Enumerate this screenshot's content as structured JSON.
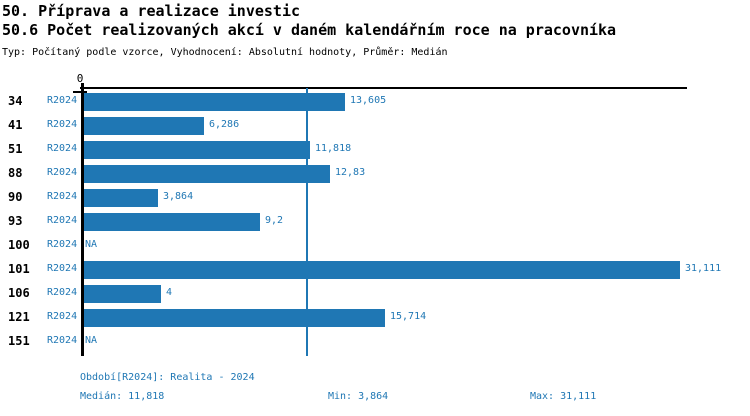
{
  "chart_data": {
    "type": "bar",
    "orientation": "horizontal",
    "title": "50. Příprava a realizace investic",
    "subtitle": "50.6 Počet realizovaných akcí v daném kalendářním roce na pracovníka",
    "meta_line": "Typ: Počítaný podle vzorce, Vyhodnocení: Absolutní hodnoty, Průměr: Medián",
    "axis": {
      "zero_label": "0",
      "xlim": [
        0,
        32
      ],
      "grid": false
    },
    "series_name": "R2024",
    "median_value": 11.818,
    "categories": [
      "34",
      "41",
      "51",
      "88",
      "90",
      "93",
      "100",
      "101",
      "106",
      "121",
      "151"
    ],
    "rows": [
      {
        "id": "34",
        "series": "R2024",
        "value": 13.605,
        "label": "13,605"
      },
      {
        "id": "41",
        "series": "R2024",
        "value": 6.286,
        "label": "6,286"
      },
      {
        "id": "51",
        "series": "R2024",
        "value": 11.818,
        "label": "11,818"
      },
      {
        "id": "88",
        "series": "R2024",
        "value": 12.83,
        "label": "12,83"
      },
      {
        "id": "90",
        "series": "R2024",
        "value": 3.864,
        "label": "3,864"
      },
      {
        "id": "93",
        "series": "R2024",
        "value": 9.2,
        "label": "9,2"
      },
      {
        "id": "100",
        "series": "R2024",
        "value": null,
        "label": "NA"
      },
      {
        "id": "101",
        "series": "R2024",
        "value": 31.111,
        "label": "31,111"
      },
      {
        "id": "106",
        "series": "R2024",
        "value": 4,
        "label": "4"
      },
      {
        "id": "121",
        "series": "R2024",
        "value": 15.714,
        "label": "15,714"
      },
      {
        "id": "151",
        "series": "R2024",
        "value": null,
        "label": "NA"
      }
    ],
    "footer": {
      "period": "Období[R2024]: Realita - 2024",
      "median": "Medián: 11,818",
      "min": "Min: 3,864",
      "max": "Max: 31,111"
    },
    "colors": {
      "bar_blue": "#1f77b4",
      "text_black": "#000000",
      "background": "#ffffff"
    }
  }
}
